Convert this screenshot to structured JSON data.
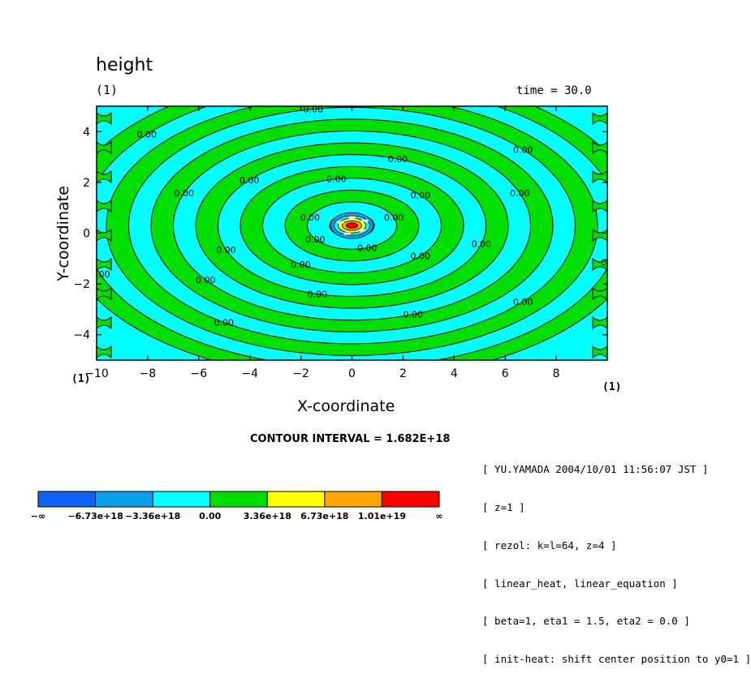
{
  "chart_data": {
    "type": "contour",
    "title": "height",
    "subtitle": "(1)",
    "time_label": "time = 30.0",
    "xlabel": "X-coordinate",
    "ylabel": "Y-coordinate",
    "x_unit_left": "(1)",
    "x_unit_right": "(1)",
    "xlim": [
      -10,
      10
    ],
    "ylim": [
      -5,
      5
    ],
    "xticks": [
      -10,
      -8,
      -6,
      -4,
      -2,
      0,
      2,
      4,
      6,
      8
    ],
    "yticks": [
      -4,
      -2,
      0,
      2,
      4
    ],
    "contour_interval": "CONTOUR INTERVAL = 1.682E+18",
    "contour_label": "0.00",
    "center": [
      0,
      0.3
    ],
    "colorbar": {
      "levels": [
        "−∞",
        "−6.73e+18",
        "−3.36e+18",
        "0.00",
        "3.36e+18",
        "6.73e+18",
        "1.01e+19",
        "∞"
      ],
      "colors": [
        "#0f61f5",
        "#0aa0ee",
        "#00ffff",
        "#00e000",
        "#ffff00",
        "#ffa500",
        "#ff0000"
      ]
    }
  },
  "notes": [
    "[ YU.YAMADA 2004/10/01 11:56:07 JST ]",
    "[ z=1 ]",
    "[ rezol: k=l=64, z=4 ]",
    "[ linear_heat, linear_equation ]",
    "[ beta=1, eta1 = 1.5, eta2 = 0.0 ]",
    "[ init-heat: shift center position to y0=1 ]"
  ]
}
